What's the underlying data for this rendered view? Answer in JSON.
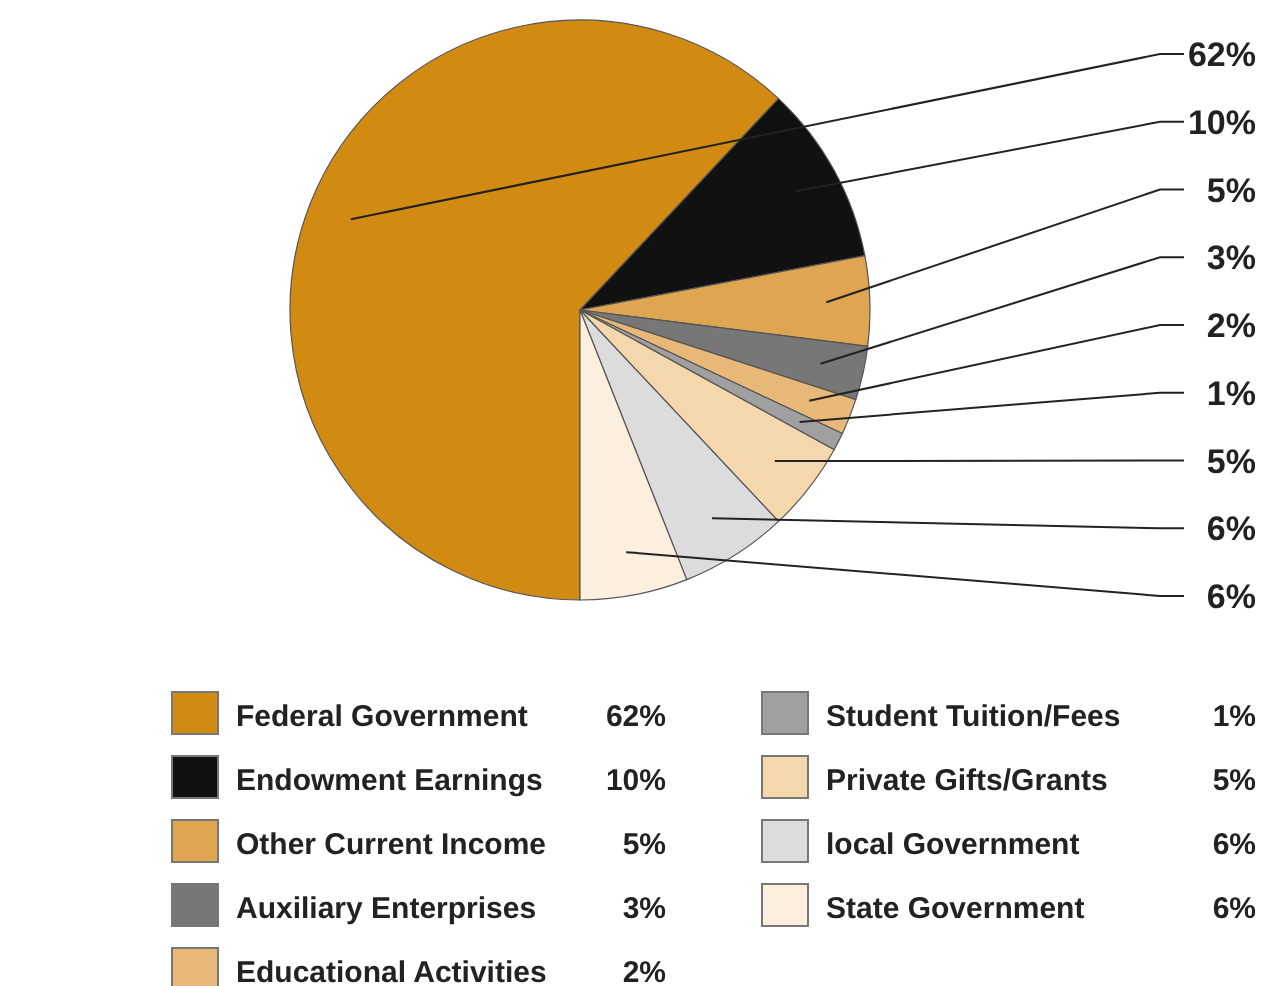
{
  "chart_data": {
    "type": "pie",
    "categories": [
      "Federal Government",
      "Endowment Earnings",
      "Other Current Income",
      "Auxiliary Enterprises",
      "Educational Activities",
      "Student Tuition/Fees",
      "Private Gifts/Grants",
      "local Government",
      "State Government"
    ],
    "values": [
      62,
      10,
      5,
      3,
      2,
      1,
      5,
      6,
      6
    ],
    "value_labels": [
      "62%",
      "10%",
      "5%",
      "3%",
      "2%",
      "1%",
      "5%",
      "6%",
      "6%"
    ],
    "colors": [
      "#d18a12",
      "#111111",
      "#e0a550",
      "#777777",
      "#e8b878",
      "#a0a0a0",
      "#f5d7ad",
      "#dcdcdc",
      "#fcefe0"
    ],
    "legend": "bottom"
  }
}
